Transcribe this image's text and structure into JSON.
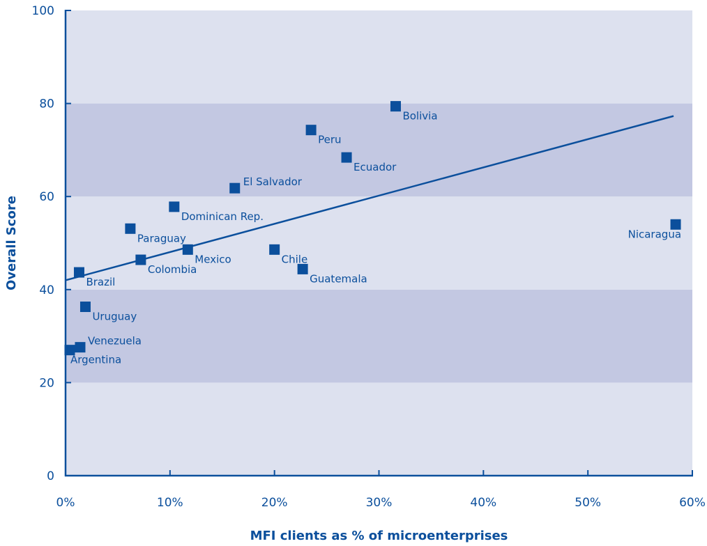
{
  "chart_data": {
    "type": "scatter",
    "xlabel": "MFI clients as % of microenterprises",
    "ylabel": "Overall Score",
    "xlim": [
      0,
      60
    ],
    "ylim": [
      0,
      100
    ],
    "x_ticks": [
      0,
      10,
      20,
      30,
      40,
      50,
      60
    ],
    "x_tick_labels": [
      "0%",
      "10%",
      "20%",
      "30%",
      "40%",
      "50%",
      "60%"
    ],
    "y_ticks": [
      0,
      20,
      40,
      60,
      80,
      100
    ],
    "y_tick_labels": [
      "0",
      "20",
      "40",
      "60",
      "80",
      "100"
    ],
    "bands": [
      {
        "from": 0,
        "to": 20,
        "shade": "light"
      },
      {
        "from": 20,
        "to": 40,
        "shade": "dark"
      },
      {
        "from": 40,
        "to": 60,
        "shade": "light"
      },
      {
        "from": 60,
        "to": 80,
        "shade": "dark"
      },
      {
        "from": 80,
        "to": 100,
        "shade": "light"
      }
    ],
    "points": [
      {
        "label": "Bolivia",
        "x": 31.6,
        "y": 79.4
      },
      {
        "label": "Peru",
        "x": 23.5,
        "y": 74.3
      },
      {
        "label": "Ecuador",
        "x": 26.9,
        "y": 68.4
      },
      {
        "label": "El Salvador",
        "x": 16.2,
        "y": 61.8
      },
      {
        "label": "Dominican Rep.",
        "x": 10.4,
        "y": 57.8
      },
      {
        "label": "Paraguay",
        "x": 6.2,
        "y": 53.1
      },
      {
        "label": "Nicaragua",
        "x": 58.4,
        "y": 54.0
      },
      {
        "label": "Mexico",
        "x": 11.7,
        "y": 48.6
      },
      {
        "label": "Chile",
        "x": 20.0,
        "y": 48.6
      },
      {
        "label": "Colombia",
        "x": 7.2,
        "y": 46.4
      },
      {
        "label": "Guatemala",
        "x": 22.7,
        "y": 44.4
      },
      {
        "label": "Brazil",
        "x": 1.3,
        "y": 43.7
      },
      {
        "label": "Uruguay",
        "x": 1.9,
        "y": 36.3
      },
      {
        "label": "Venezuela",
        "x": 1.4,
        "y": 27.6
      },
      {
        "label": "Argentina",
        "x": 0.4,
        "y": 27.0
      }
    ],
    "trendline": {
      "x": [
        0,
        58.2
      ],
      "y": [
        42.0,
        77.3
      ]
    }
  },
  "colors": {
    "band_light": "#dde1ef",
    "band_dark": "#c3c8e2",
    "marker": "#0b4f9c",
    "text": "#0b4f9c",
    "axis": "#0b4f9c"
  }
}
